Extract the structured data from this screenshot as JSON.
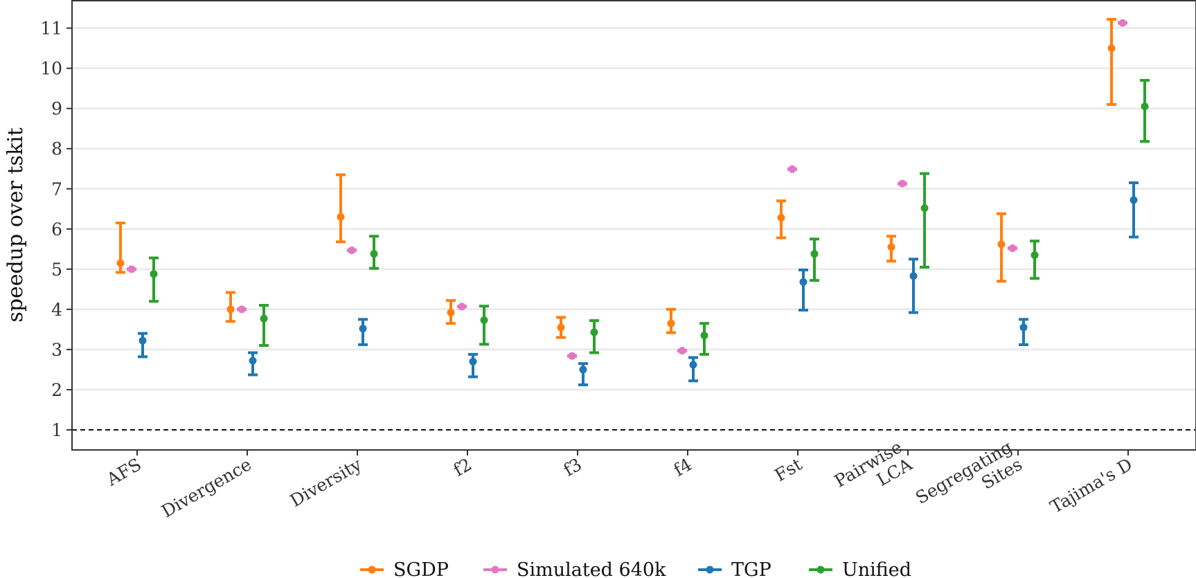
{
  "chart_data": {
    "type": "scatter",
    "subtype": "point-with-errorbars",
    "title": "",
    "xlabel": "",
    "ylabel": "speedup over tskit",
    "ylim": [
      0.5,
      11.7
    ],
    "yticks": [
      1,
      2,
      3,
      4,
      5,
      6,
      7,
      8,
      9,
      10,
      11
    ],
    "grid": "horizontal",
    "reference_line": {
      "y": 1,
      "style": "dashed"
    },
    "legend_position": "bottom",
    "categories": [
      [
        "AFS"
      ],
      [
        "Divergence"
      ],
      [
        "Diversity"
      ],
      [
        "f2"
      ],
      [
        "f3"
      ],
      [
        "f4"
      ],
      [
        "Fst"
      ],
      [
        "Pairwise",
        "LCA"
      ],
      [
        "Segregating",
        "Sites"
      ],
      [
        "Tajima's D"
      ]
    ],
    "series": [
      {
        "name": "SGDP",
        "color": "#ff7f0e",
        "values": [
          5.15,
          4.0,
          6.3,
          3.92,
          3.55,
          3.65,
          6.28,
          5.55,
          5.62,
          10.5
        ],
        "lower": [
          4.92,
          3.7,
          5.68,
          3.65,
          3.3,
          3.42,
          5.78,
          5.2,
          4.7,
          9.1
        ],
        "upper": [
          6.15,
          4.42,
          7.35,
          4.22,
          3.8,
          4.0,
          6.7,
          5.82,
          6.38,
          11.22
        ]
      },
      {
        "name": "Simulated 640k",
        "color": "#e377c2",
        "values": [
          5.0,
          4.0,
          5.47,
          4.07,
          2.84,
          2.97,
          7.49,
          7.13,
          5.52,
          11.13
        ],
        "lower": [
          5.0,
          4.0,
          5.47,
          4.07,
          2.84,
          2.97,
          7.49,
          7.13,
          5.52,
          11.13
        ],
        "upper": [
          5.0,
          4.0,
          5.47,
          4.07,
          2.84,
          2.97,
          7.49,
          7.13,
          5.52,
          11.13
        ]
      },
      {
        "name": "TGP",
        "color": "#1f77b4",
        "values": [
          3.22,
          2.72,
          3.52,
          2.7,
          2.5,
          2.62,
          4.68,
          4.83,
          3.55,
          6.72
        ],
        "lower": [
          2.82,
          2.37,
          3.12,
          2.32,
          2.12,
          2.22,
          3.98,
          3.92,
          3.12,
          5.8
        ],
        "upper": [
          3.4,
          2.92,
          3.75,
          2.88,
          2.65,
          2.8,
          4.98,
          5.25,
          3.75,
          7.15
        ]
      },
      {
        "name": "Unified",
        "color": "#2ca02c",
        "values": [
          4.88,
          3.77,
          5.38,
          3.73,
          3.43,
          3.35,
          5.38,
          6.52,
          5.35,
          9.05
        ],
        "lower": [
          4.2,
          3.1,
          5.02,
          3.13,
          2.92,
          2.88,
          4.72,
          5.05,
          4.77,
          8.18
        ],
        "upper": [
          5.28,
          4.1,
          5.82,
          4.08,
          3.72,
          3.65,
          5.75,
          7.38,
          5.7,
          9.7
        ]
      }
    ]
  }
}
